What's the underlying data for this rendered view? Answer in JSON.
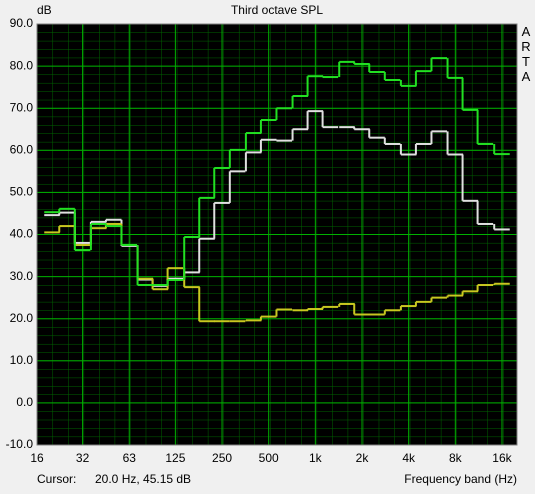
{
  "chart_data": {
    "type": "step",
    "title": "Third octave SPL",
    "y_label": "dB",
    "x_label": "Frequency band (Hz)",
    "brand": "ARTA",
    "cursor_label": "Cursor:",
    "cursor_value": "20.0 Hz, 45.15 dB",
    "x_scale": "log",
    "grid": true,
    "xlim": [
      16,
      20000
    ],
    "xticks": [
      16,
      {
        "value": 31.5,
        "label": "32"
      },
      63,
      125,
      250,
      500,
      {
        "value": 1000,
        "label": "1k"
      },
      {
        "value": 2000,
        "label": "2k"
      },
      {
        "value": 4000,
        "label": "4k"
      },
      {
        "value": 8000,
        "label": "8k"
      },
      {
        "value": 16000,
        "label": "16k"
      }
    ],
    "ylim": [
      -10,
      90
    ],
    "yticks": [
      {
        "value": 90,
        "label": "90.0"
      },
      {
        "value": 80,
        "label": "80.0"
      },
      {
        "value": 70,
        "label": "70.0"
      },
      {
        "value": 60,
        "label": "60.0"
      },
      {
        "value": 50,
        "label": "50.0"
      },
      {
        "value": 40,
        "label": "40.0"
      },
      {
        "value": 30,
        "label": "30.0"
      },
      {
        "value": 20,
        "label": "20.0"
      },
      {
        "value": 10,
        "label": "10.0"
      },
      {
        "value": 0,
        "label": "0.0"
      },
      {
        "value": -10,
        "label": "-10.0"
      }
    ],
    "x": [
      20,
      25,
      31.5,
      40,
      50,
      63,
      80,
      100,
      125,
      160,
      200,
      250,
      315,
      400,
      500,
      630,
      800,
      1000,
      1250,
      1600,
      2000,
      2500,
      3150,
      4000,
      5000,
      6300,
      8000,
      10000,
      12500,
      16000
    ],
    "series": [
      {
        "color": "#e0e0e0",
        "values": [
          44.6,
          45.2,
          38.0,
          43.0,
          43.5,
          37.3,
          29.3,
          27.8,
          29.5,
          31.0,
          39.0,
          47.5,
          55.0,
          59.5,
          62.5,
          62.3,
          65.0,
          69.3,
          65.5,
          65.5,
          65.0,
          63.0,
          61.5,
          59.0,
          61.5,
          64.5,
          59.0,
          48.0,
          42.5,
          41.2
        ]
      },
      {
        "color": "#c8c820",
        "values": [
          40.5,
          42.0,
          37.5,
          41.5,
          42.5,
          37.5,
          29.5,
          27.0,
          32.0,
          27.5,
          19.4,
          19.4,
          19.4,
          19.6,
          20.5,
          22.2,
          22.0,
          22.3,
          22.8,
          23.5,
          21.0,
          21.0,
          22.0,
          23.0,
          24.0,
          25.0,
          25.5,
          26.5,
          28.0,
          28.3
        ]
      },
      {
        "color": "#22e022",
        "values": [
          45.3,
          46.1,
          36.3,
          42.5,
          42.0,
          37.5,
          28.0,
          28.0,
          29.2,
          39.4,
          48.7,
          55.8,
          60.1,
          64.1,
          67.2,
          70.0,
          72.9,
          77.6,
          77.4,
          81.0,
          80.5,
          78.6,
          76.7,
          75.3,
          78.8,
          81.9,
          77.2,
          69.6,
          61.5,
          59.1
        ]
      }
    ]
  }
}
